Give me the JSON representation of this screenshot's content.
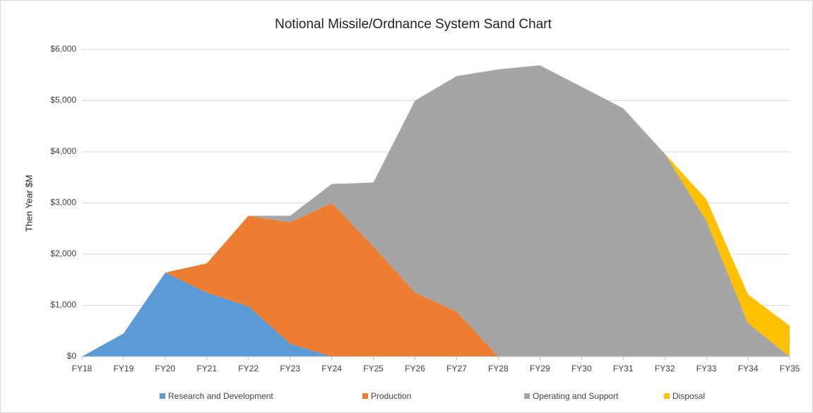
{
  "chart_data": {
    "type": "stacked-area",
    "title": "Notional Missile/Ordnance System Sand Chart",
    "y_label": "Then Year  $M",
    "categories": [
      "FY18",
      "FY19",
      "FY20",
      "FY21",
      "FY22",
      "FY23",
      "FY24",
      "FY25",
      "FY26",
      "FY27",
      "FY28",
      "FY29",
      "FY30",
      "FY31",
      "FY32",
      "FY33",
      "FY34",
      "FY35"
    ],
    "series": [
      {
        "name": "Research and Development",
        "color": "#5b9bd5",
        "values": [
          0,
          450,
          1640,
          1250,
          980,
          250,
          0,
          0,
          0,
          0,
          0,
          0,
          0,
          0,
          0,
          0,
          0,
          0
        ]
      },
      {
        "name": "Production",
        "color": "#ed7d31",
        "values": [
          0,
          0,
          0,
          570,
          1770,
          2370,
          3000,
          2150,
          1250,
          880,
          0,
          0,
          0,
          0,
          0,
          0,
          0,
          0
        ]
      },
      {
        "name": "Operating and Support",
        "color": "#a5a5a5",
        "values": [
          0,
          0,
          0,
          0,
          0,
          130,
          370,
          1250,
          3750,
          4600,
          5610,
          5690,
          5270,
          4850,
          3960,
          2650,
          650,
          0
        ]
      },
      {
        "name": "Disposal",
        "color": "#ffc000",
        "values": [
          0,
          0,
          0,
          0,
          0,
          0,
          0,
          0,
          0,
          0,
          0,
          0,
          0,
          0,
          0,
          420,
          560,
          600
        ]
      }
    ],
    "ylim": [
      0,
      6000
    ],
    "yticks": [
      {
        "value": 0,
        "label": "$0"
      },
      {
        "value": 1000,
        "label": "$1,000"
      },
      {
        "value": 2000,
        "label": "$2,000"
      },
      {
        "value": 3000,
        "label": "$3,000"
      },
      {
        "value": 4000,
        "label": "$4,000"
      },
      {
        "value": 5000,
        "label": "$5,000"
      },
      {
        "value": 6000,
        "label": "$6,000"
      }
    ],
    "grid": true,
    "legend": "bottom"
  }
}
